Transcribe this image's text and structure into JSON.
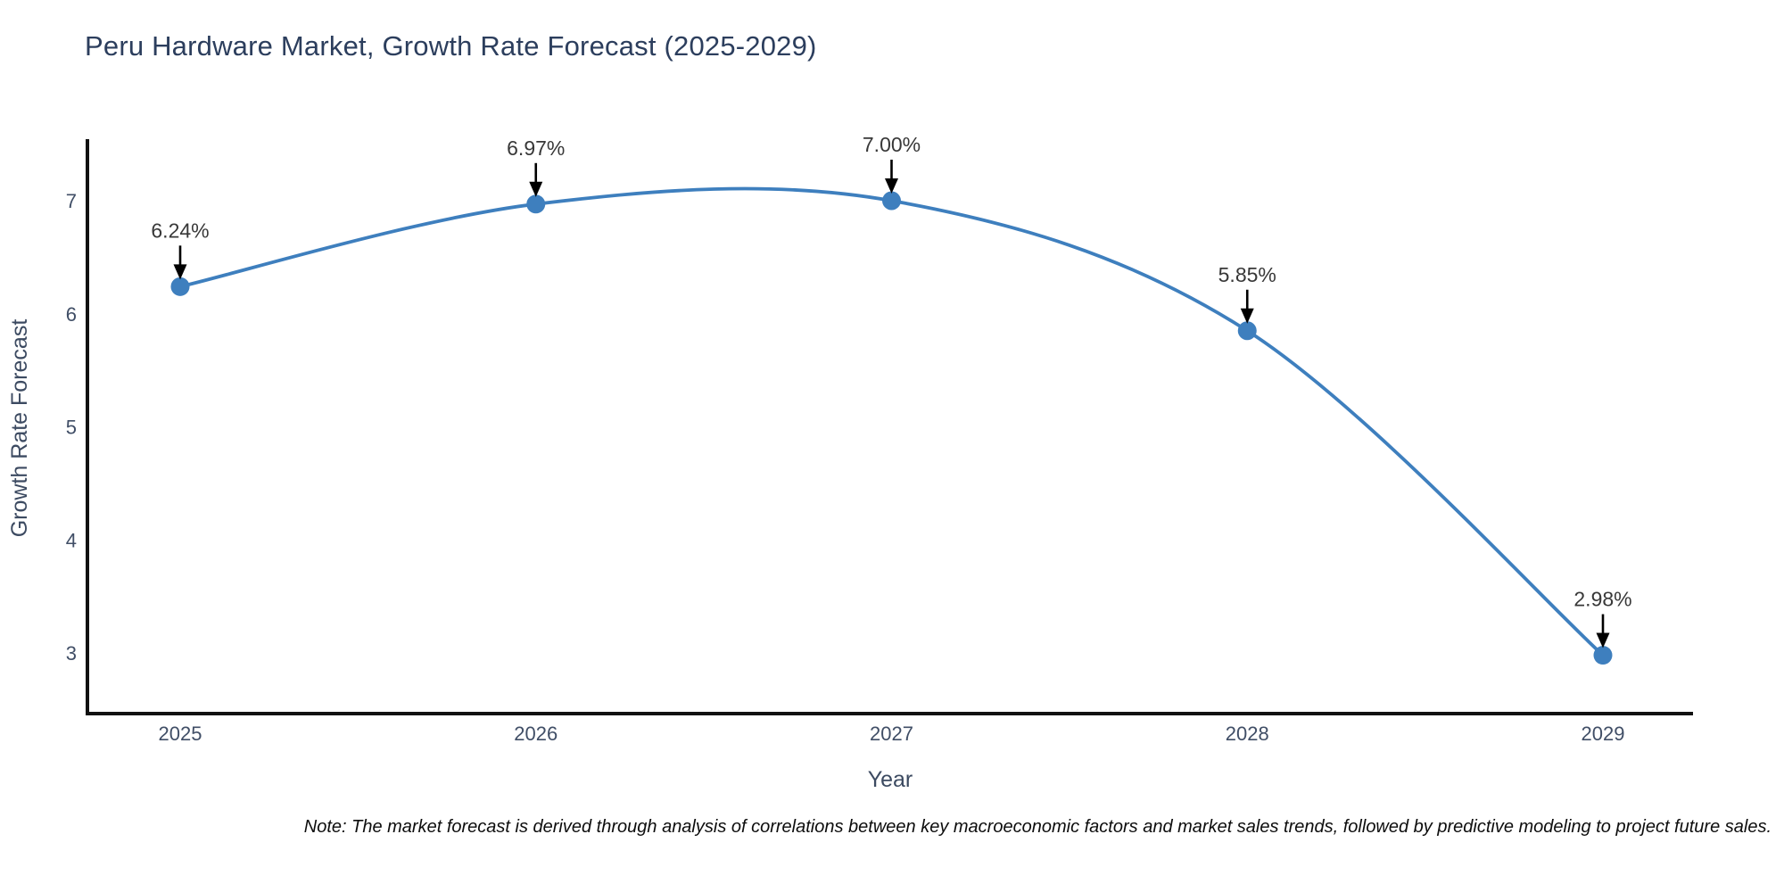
{
  "title": "Peru Hardware Market, Growth Rate Forecast (2025-2029)",
  "note": "Note: The market forecast is derived through analysis of correlations between key macroeconomic factors and market sales trends, followed by predictive modeling to project future sales.",
  "chart_data": {
    "type": "line",
    "title": "Peru Hardware Market, Growth Rate Forecast (2025-2029)",
    "xlabel": "Year",
    "ylabel": "Growth Rate Forecast",
    "categories": [
      "2025",
      "2026",
      "2027",
      "2028",
      "2029"
    ],
    "values": [
      6.24,
      6.97,
      7.0,
      5.85,
      2.98
    ],
    "data_labels": [
      "6.24%",
      "6.97%",
      "7.00%",
      "5.85%",
      "2.98%"
    ],
    "y_ticks": [
      3,
      4,
      5,
      6,
      7
    ],
    "ylim": [
      2.45,
      7.55
    ],
    "line_shape": "spline",
    "grid": false,
    "legend": "none",
    "annotation_style": "label-above-with-down-arrow",
    "colors": {
      "line": "#3e7fbe",
      "marker": "#3e7fbe",
      "arrow": "#000000",
      "spine": "#111111",
      "title": "#2c3e5d",
      "axis_label": "#3c4a61",
      "tick_label": "#404e66",
      "data_label": "#383838"
    }
  }
}
